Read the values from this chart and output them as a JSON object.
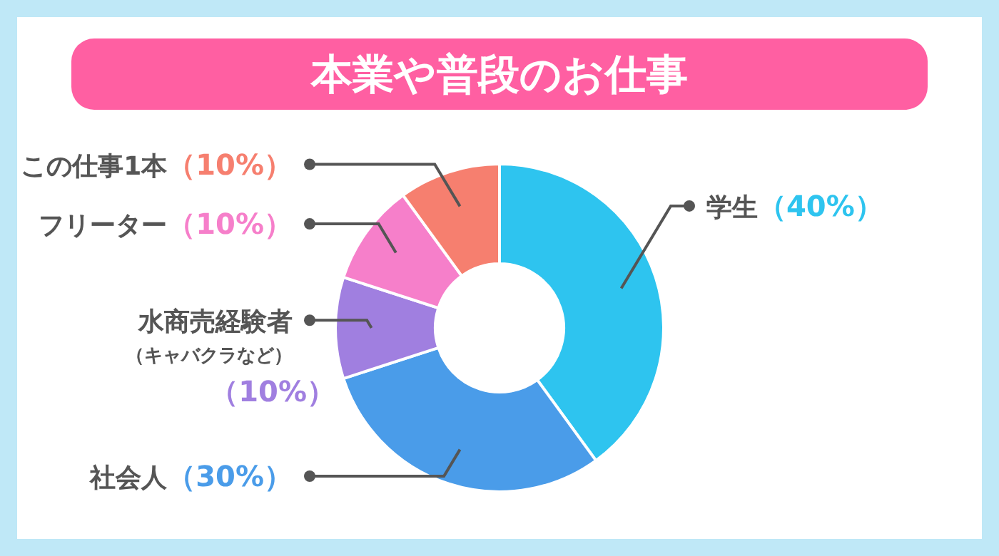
{
  "chart_data": {
    "type": "donut",
    "title": "本業や普段のお仕事",
    "categories": [
      "学生",
      "社会人",
      "水商売経験者（キャバクラなど）",
      "フリーター",
      "この仕事1本"
    ],
    "values": [
      40,
      30,
      10,
      10,
      10
    ],
    "colors": [
      "#2ec4ef",
      "#4a9ce9",
      "#a07fe0",
      "#f67fca",
      "#f67f6f"
    ],
    "value_labels": [
      "（40%）",
      "（30%）",
      "（10%）",
      "（10%）",
      "（10%）"
    ]
  }
}
